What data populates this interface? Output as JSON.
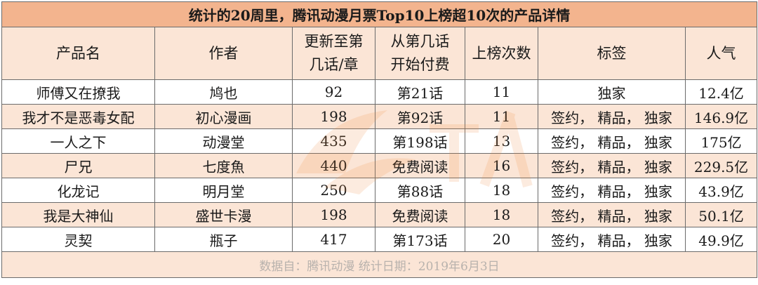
{
  "table": {
    "title": "统计的20周里，腾讯动漫月票Top10上榜超10次的产品详情",
    "headers": [
      {
        "line1": "产品名",
        "line2": ""
      },
      {
        "line1": "作者",
        "line2": ""
      },
      {
        "line1": "更新至第",
        "line2": "几话/章"
      },
      {
        "line1": "从第几话",
        "line2": "开始付费"
      },
      {
        "line1": "上榜次数",
        "line2": ""
      },
      {
        "line1": "标签",
        "line2": ""
      },
      {
        "line1": "人气",
        "line2": ""
      }
    ],
    "rows": [
      [
        "师傅又在撩我",
        "鸠也",
        "92",
        "第21话",
        "11",
        "独家",
        "12.4亿"
      ],
      [
        "我才不是恶毒女配",
        "初心漫画",
        "198",
        "第92话",
        "11",
        "签约， 精品， 独家",
        "146.9亿"
      ],
      [
        "一人之下",
        "动漫堂",
        "435",
        "第198话",
        "13",
        "签约， 精品， 独家",
        "175亿"
      ],
      [
        "尸兄",
        "七度魚",
        "440",
        "免费阅读",
        "16",
        "签约， 精品， 独家",
        "229.5亿"
      ],
      [
        "化龙记",
        "明月堂",
        "250",
        "第88话",
        "18",
        "签约， 精品， 独家",
        "43.9亿"
      ],
      [
        "我是大神仙",
        "盛世卡漫",
        "198",
        "免费阅读",
        "18",
        "签约， 精品， 独家",
        "50.1亿"
      ],
      [
        "灵契",
        "瓶子",
        "417",
        "第173话",
        "20",
        "签约， 精品， 独家",
        "49.9亿"
      ]
    ],
    "footer": "数据自：腾讯动漫  统计日期：2019年6月3日"
  },
  "watermark": {
    "icon": "watermark-logo-icon",
    "color": "#f08a3c"
  },
  "colors": {
    "title_bg": "#f3b48e",
    "shade_bg": "#fbe5d6",
    "border": "#6b6b6b"
  }
}
